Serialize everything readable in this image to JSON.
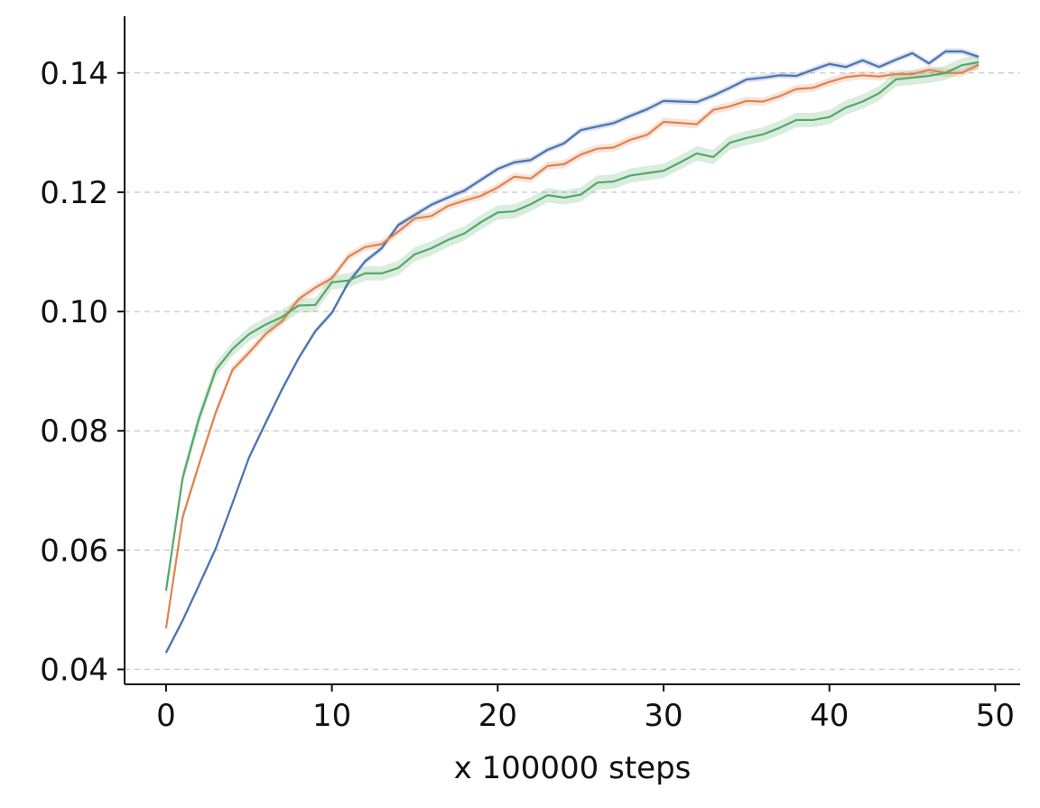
{
  "chart_data": {
    "type": "line",
    "title": "",
    "xlabel": "x 100000 steps",
    "ylabel": "",
    "xlim": [
      -2.5,
      51.5
    ],
    "ylim": [
      0.0375,
      0.1495
    ],
    "x_ticks": [
      0,
      10,
      20,
      30,
      40,
      50
    ],
    "x_tick_labels": [
      "0",
      "10",
      "20",
      "30",
      "40",
      "50"
    ],
    "y_ticks": [
      0.04,
      0.06,
      0.08,
      0.1,
      0.12,
      0.14
    ],
    "y_tick_labels": [
      "0.04",
      "0.06",
      "0.08",
      "0.10",
      "0.12",
      "0.14"
    ],
    "grid": "horizontal dashed",
    "x": [
      0,
      1,
      2,
      3,
      4,
      5,
      6,
      7,
      8,
      9,
      10,
      11,
      12,
      13,
      14,
      15,
      16,
      17,
      18,
      19,
      20,
      21,
      22,
      23,
      24,
      25,
      26,
      27,
      28,
      29,
      30,
      31,
      32,
      33,
      34,
      35,
      36,
      37,
      38,
      39,
      40,
      41,
      42,
      43,
      44,
      45,
      46,
      47,
      48,
      49
    ],
    "series": [
      {
        "color": "#4c72b0",
        "band": 0.0005,
        "values": [
          0.0428,
          0.0482,
          0.0542,
          0.0603,
          0.0678,
          0.0755,
          0.0813,
          0.087,
          0.0922,
          0.0967,
          0.0998,
          0.1049,
          0.1084,
          0.1106,
          0.1145,
          0.1162,
          0.1179,
          0.1191,
          0.1203,
          0.1221,
          0.1239,
          0.125,
          0.1254,
          0.1271,
          0.1282,
          0.1304,
          0.131,
          0.1316,
          0.1328,
          0.1339,
          0.1353,
          0.1352,
          0.1351,
          0.1362,
          0.1375,
          0.1389,
          0.1392,
          0.1396,
          0.1395,
          0.1405,
          0.1415,
          0.141,
          0.1421,
          0.141,
          0.1422,
          0.1433,
          0.1416,
          0.1436,
          0.1436,
          0.1427
        ]
      },
      {
        "color": "#dd8452",
        "band": 0.0007,
        "values": [
          0.0469,
          0.0655,
          0.0745,
          0.0831,
          0.0902,
          0.0931,
          0.0962,
          0.0984,
          0.1021,
          0.104,
          0.1056,
          0.1092,
          0.1108,
          0.1113,
          0.1134,
          0.1156,
          0.116,
          0.1177,
          0.1186,
          0.1194,
          0.1208,
          0.1226,
          0.1223,
          0.1244,
          0.1247,
          0.1263,
          0.1273,
          0.1275,
          0.1288,
          0.1296,
          0.1318,
          0.1316,
          0.1314,
          0.1338,
          0.1344,
          0.1353,
          0.1352,
          0.1361,
          0.1373,
          0.1375,
          0.1385,
          0.1393,
          0.1396,
          0.1394,
          0.1398,
          0.1398,
          0.1405,
          0.14,
          0.14,
          0.1414
        ]
      },
      {
        "color": "#55a868",
        "band": 0.0012,
        "values": [
          0.0532,
          0.0721,
          0.0822,
          0.0902,
          0.0937,
          0.0962,
          0.0978,
          0.0991,
          0.101,
          0.1011,
          0.1049,
          0.1052,
          0.1064,
          0.1064,
          0.1073,
          0.1096,
          0.1106,
          0.112,
          0.1131,
          0.115,
          0.1166,
          0.1168,
          0.118,
          0.1195,
          0.1191,
          0.1196,
          0.1216,
          0.1218,
          0.1228,
          0.1232,
          0.1236,
          0.125,
          0.1265,
          0.1259,
          0.1283,
          0.1291,
          0.1297,
          0.1308,
          0.1321,
          0.1321,
          0.1326,
          0.1342,
          0.1352,
          0.1366,
          0.1389,
          0.1392,
          0.1395,
          0.14,
          0.1413,
          0.1418
        ]
      }
    ]
  }
}
